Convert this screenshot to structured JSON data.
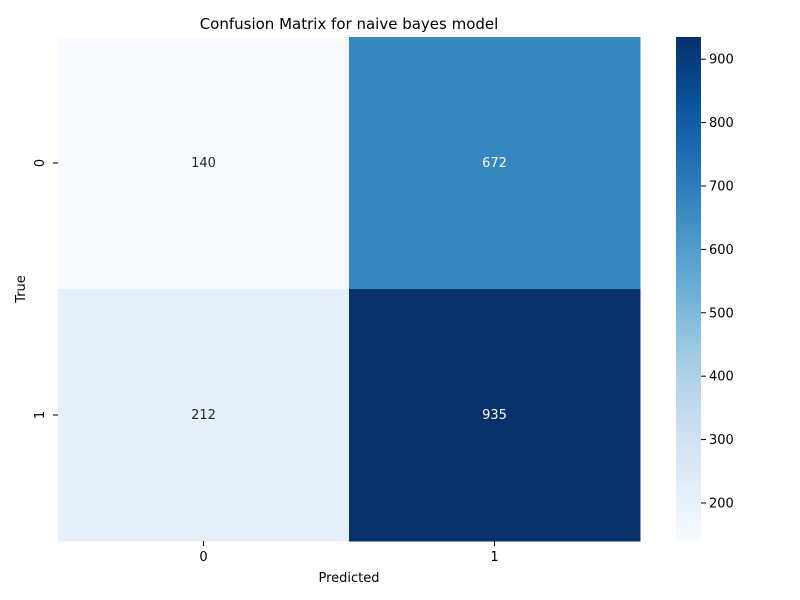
{
  "chart_data": {
    "type": "heatmap",
    "title": "Confusion Matrix for naive bayes model",
    "xlabel": "Predicted",
    "ylabel": "True",
    "x_categories": [
      "0",
      "1"
    ],
    "y_categories": [
      "0",
      "1"
    ],
    "values": [
      [
        140,
        672
      ],
      [
        212,
        935
      ]
    ],
    "colorscale": "Blues",
    "colorbar": {
      "min": 140,
      "max": 935,
      "ticks": [
        "200",
        "300",
        "400",
        "500",
        "600",
        "700",
        "800",
        "900"
      ]
    }
  }
}
